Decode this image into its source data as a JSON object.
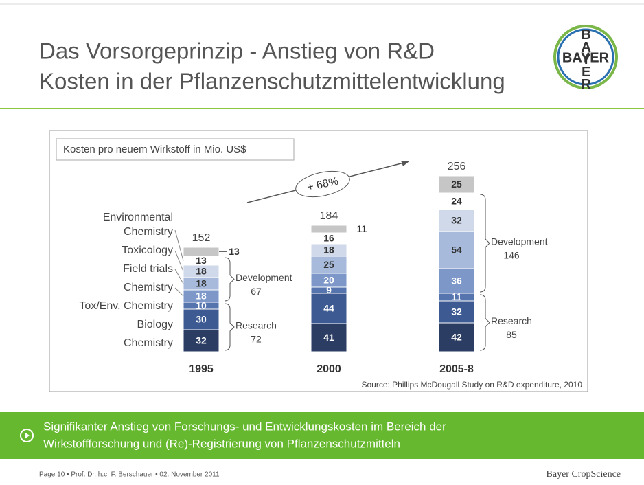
{
  "title": [
    "Das Vorsorgeprinzip - Anstieg von R&D",
    "Kosten in der Pflanzenschutzmittelentwicklung"
  ],
  "logo": {
    "horizontal": "BAYER",
    "vertical": "BAYER"
  },
  "chart_data": {
    "type": "stacked_bar",
    "subtitle": "Kosten pro neuem Wirkstoff in Mio. US$",
    "categories": [
      "1995",
      "2000",
      "2005-8"
    ],
    "series": [
      {
        "name": "Chemistry",
        "color": "#2b3d63",
        "values": [
          32,
          41,
          42
        ]
      },
      {
        "name": "Biology",
        "color": "#3d5a92",
        "values": [
          30,
          44,
          32
        ]
      },
      {
        "name": "Tox/Env. Chemistry",
        "color": "#5675ae",
        "values": [
          10,
          9,
          11
        ]
      },
      {
        "name": "Chemistry",
        "color": "#7c97c8",
        "values": [
          18,
          20,
          36
        ]
      },
      {
        "name": "Field trials",
        "color": "#a7badb",
        "values": [
          18,
          25,
          54
        ]
      },
      {
        "name": "Toxicology",
        "color": "#cfd9ea",
        "values": [
          18,
          18,
          32
        ]
      },
      {
        "name": "Environmental Chemistry",
        "color": "#ffffff",
        "values": [
          13,
          16,
          24
        ]
      },
      {
        "color": "#c6c6c6",
        "values": [
          13,
          11,
          25
        ]
      }
    ],
    "totals": [
      152,
      184,
      256
    ],
    "brackets": [
      [
        {
          "label": "Research",
          "value": 72
        },
        {
          "label": "Development",
          "value": 67
        }
      ],
      [],
      [
        {
          "label": "Research",
          "value": 85
        },
        {
          "label": "Development",
          "value": 146
        }
      ]
    ],
    "annotation": "+ 68%",
    "source": "Source: Phillips McDougall Study on R&D expenditure, 2010"
  },
  "banner": [
    "Signifikanter Anstieg von Forschungs- und Entwicklungskosten im Bereich der",
    "Wirkstoffforschung und (Re)-Registrierung von Pflanzenschutzmitteln"
  ],
  "footer": {
    "left": "Page 10 • Prof. Dr. h.c. F. Berschauer • 02. November 2011",
    "right": "Bayer CropScience"
  }
}
